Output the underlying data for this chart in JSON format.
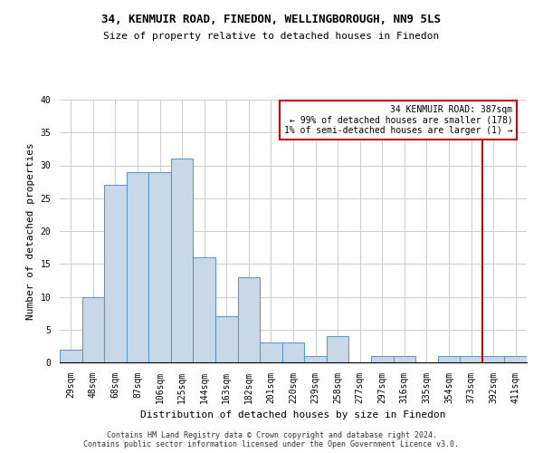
{
  "title": "34, KENMUIR ROAD, FINEDON, WELLINGBOROUGH, NN9 5LS",
  "subtitle": "Size of property relative to detached houses in Finedon",
  "xlabel": "Distribution of detached houses by size in Finedon",
  "ylabel": "Number of detached properties",
  "footer_line1": "Contains HM Land Registry data © Crown copyright and database right 2024.",
  "footer_line2": "Contains public sector information licensed under the Open Government Licence v3.0.",
  "categories": [
    "29sqm",
    "48sqm",
    "68sqm",
    "87sqm",
    "106sqm",
    "125sqm",
    "144sqm",
    "163sqm",
    "182sqm",
    "201sqm",
    "220sqm",
    "239sqm",
    "258sqm",
    "277sqm",
    "297sqm",
    "316sqm",
    "335sqm",
    "354sqm",
    "373sqm",
    "392sqm",
    "411sqm"
  ],
  "values": [
    2,
    10,
    27,
    29,
    29,
    31,
    16,
    7,
    13,
    3,
    3,
    1,
    4,
    0,
    1,
    1,
    0,
    1,
    1,
    1,
    1
  ],
  "bar_color": "#c8d8e8",
  "bar_edge_color": "#5b9bd5",
  "annotation_text": "34 KENMUIR ROAD: 387sqm\n← 99% of detached houses are smaller (178)\n1% of semi-detached houses are larger (1) →",
  "annotation_box_color": "#ffffff",
  "annotation_box_edge_color": "#cc0000",
  "red_line_color": "#cc0000",
  "red_line_x": 18.5,
  "ylim": [
    0,
    40
  ],
  "yticks": [
    0,
    5,
    10,
    15,
    20,
    25,
    30,
    35,
    40
  ],
  "grid_color": "#cccccc",
  "bg_color": "#ffffff",
  "title_fontsize": 9,
  "subtitle_fontsize": 8,
  "tick_fontsize": 7,
  "ylabel_fontsize": 8,
  "xlabel_fontsize": 8,
  "footer_fontsize": 6,
  "annot_fontsize": 7
}
